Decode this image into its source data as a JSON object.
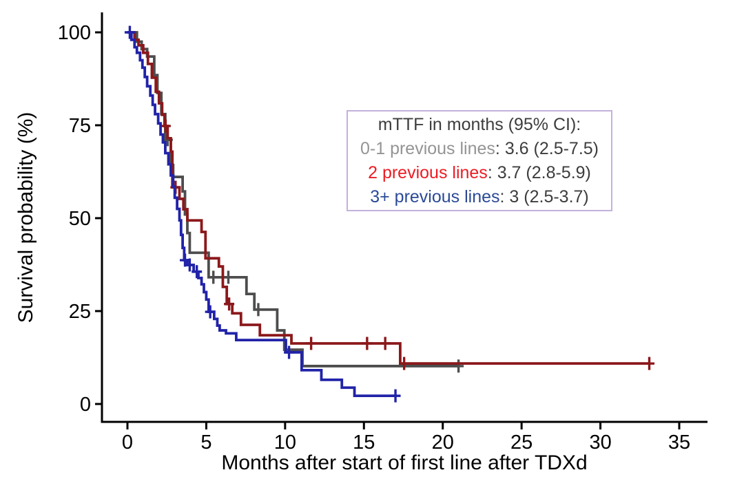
{
  "figure": {
    "background": "#ffffff"
  },
  "legend": {
    "title": "mTTF in months (95% CI):",
    "text_color": "#3d3d3d",
    "border_color": "#c3b1dc",
    "entries": [
      {
        "label": "0-1 previous lines",
        "value": ": 3.6 (2.5-7.5)",
        "color": "#949494"
      },
      {
        "label": "2 previous lines",
        "value": ": 3.7 (2.8-5.9)",
        "color": "#ec1c24"
      },
      {
        "label": "3+ previous lines",
        "value": ": 3 (2.5-3.7)",
        "color": "#2b4a97"
      }
    ]
  },
  "chart_data": {
    "type": "line",
    "subtype": "kaplan-meier-step",
    "title": "",
    "xlabel": "Months after start of first line after TDXd",
    "ylabel": "Survival probability (%)",
    "xlim": [
      0,
      36.8
    ],
    "ylim": [
      0,
      100
    ],
    "x_ticks": [
      0,
      5,
      10,
      15,
      20,
      25,
      30,
      35
    ],
    "y_ticks": [
      0,
      25,
      50,
      75,
      100
    ],
    "grid": false,
    "legend_position": "inside-top-right",
    "axis_color": "#000000",
    "tick_label_color": "#000000",
    "series": [
      {
        "name": "0-1 previous lines",
        "color": "#4d4d4d",
        "median_ttf": "3.6 (2.5-7.5)",
        "start": [
          0,
          100
        ],
        "steps": [
          [
            0.6,
            97.5
          ],
          [
            0.9,
            95.5
          ],
          [
            1.25,
            93.5
          ],
          [
            1.7,
            88.5
          ],
          [
            1.9,
            83.7
          ],
          [
            2.15,
            78
          ],
          [
            2.4,
            71.1
          ],
          [
            2.75,
            64.3
          ],
          [
            2.9,
            61.1
          ],
          [
            3.5,
            57.2
          ],
          [
            3.65,
            51
          ],
          [
            3.8,
            46
          ],
          [
            3.95,
            40.7
          ],
          [
            5.15,
            34.1
          ],
          [
            7.55,
            29.6
          ],
          [
            8.05,
            25.4
          ],
          [
            9.5,
            19.8
          ],
          [
            9.95,
            14.6
          ],
          [
            11.1,
            10.2
          ]
        ],
        "end_time": 21.0,
        "censor_marks": [
          [
            2.55,
            71.1
          ],
          [
            5.45,
            34.1
          ],
          [
            6.4,
            34.1
          ],
          [
            8.3,
            25.4
          ],
          [
            21.0,
            10.2
          ]
        ]
      },
      {
        "name": "2 previous lines",
        "color": "#8b181b",
        "median_ttf": "3.7 (2.8-5.9)",
        "start": [
          0,
          100
        ],
        "steps": [
          [
            0.45,
            98
          ],
          [
            0.7,
            96.5
          ],
          [
            1.0,
            94.5
          ],
          [
            1.3,
            91.5
          ],
          [
            1.55,
            87.8
          ],
          [
            1.8,
            84
          ],
          [
            2.0,
            80.9
          ],
          [
            2.2,
            77.8
          ],
          [
            2.35,
            74.8
          ],
          [
            2.55,
            71.5
          ],
          [
            2.75,
            67.9
          ],
          [
            2.85,
            58.3
          ],
          [
            3.3,
            55.2
          ],
          [
            3.55,
            52.4
          ],
          [
            3.8,
            49.4
          ],
          [
            4.7,
            46.3
          ],
          [
            4.95,
            39.2
          ],
          [
            5.8,
            37
          ],
          [
            6.05,
            31.5
          ],
          [
            6.3,
            26.9
          ],
          [
            6.65,
            24.4
          ],
          [
            7.2,
            21.3
          ],
          [
            8.4,
            18.5
          ],
          [
            10.4,
            16.3
          ],
          [
            17.3,
            10.9
          ]
        ],
        "end_time": 33.1,
        "censor_marks": [
          [
            2.42,
            74.8
          ],
          [
            3.05,
            58.3
          ],
          [
            6.45,
            26.9
          ],
          [
            11.65,
            16.3
          ],
          [
            15.2,
            16.3
          ],
          [
            16.35,
            16.3
          ],
          [
            17.55,
            10.9
          ],
          [
            33.1,
            10.9
          ]
        ]
      },
      {
        "name": "3+ previous lines",
        "color": "#2123a8",
        "median_ttf": "3 (2.5-3.7)",
        "start": [
          0,
          100
        ],
        "steps": [
          [
            0.25,
            98
          ],
          [
            0.45,
            96
          ],
          [
            0.6,
            94.5
          ],
          [
            0.8,
            92.5
          ],
          [
            0.95,
            90.5
          ],
          [
            1.1,
            88
          ],
          [
            1.25,
            85.5
          ],
          [
            1.45,
            83
          ],
          [
            1.6,
            80.5
          ],
          [
            1.75,
            78
          ],
          [
            1.95,
            75.5
          ],
          [
            2.1,
            72.5
          ],
          [
            2.25,
            70.4
          ],
          [
            2.4,
            67.5
          ],
          [
            2.6,
            64.5
          ],
          [
            2.75,
            61.5
          ],
          [
            2.9,
            58.5
          ],
          [
            3.0,
            55.5
          ],
          [
            3.15,
            52.5
          ],
          [
            3.3,
            49.4
          ],
          [
            3.4,
            45.5
          ],
          [
            3.5,
            42
          ],
          [
            3.6,
            38.7
          ],
          [
            3.8,
            37.4
          ],
          [
            4.2,
            35.6
          ],
          [
            4.5,
            33.9
          ],
          [
            4.7,
            32.2
          ],
          [
            4.85,
            30.1
          ],
          [
            5.0,
            28.1
          ],
          [
            5.15,
            24.8
          ],
          [
            5.5,
            22.9
          ],
          [
            5.7,
            21.1
          ],
          [
            5.85,
            19.8
          ],
          [
            6.25,
            19.0
          ],
          [
            6.9,
            17.2
          ],
          [
            10.05,
            13.9
          ],
          [
            11.05,
            9.1
          ],
          [
            12.3,
            6.5
          ],
          [
            13.6,
            4.4
          ],
          [
            14.4,
            2.2
          ]
        ],
        "end_time": 17.0,
        "censor_marks": [
          [
            0.15,
            100
          ],
          [
            3.65,
            38.7
          ],
          [
            3.95,
            37.4
          ],
          [
            4.4,
            35.6
          ],
          [
            5.25,
            24.8
          ],
          [
            10.25,
            13.9
          ],
          [
            17.0,
            2.2
          ]
        ]
      }
    ]
  }
}
